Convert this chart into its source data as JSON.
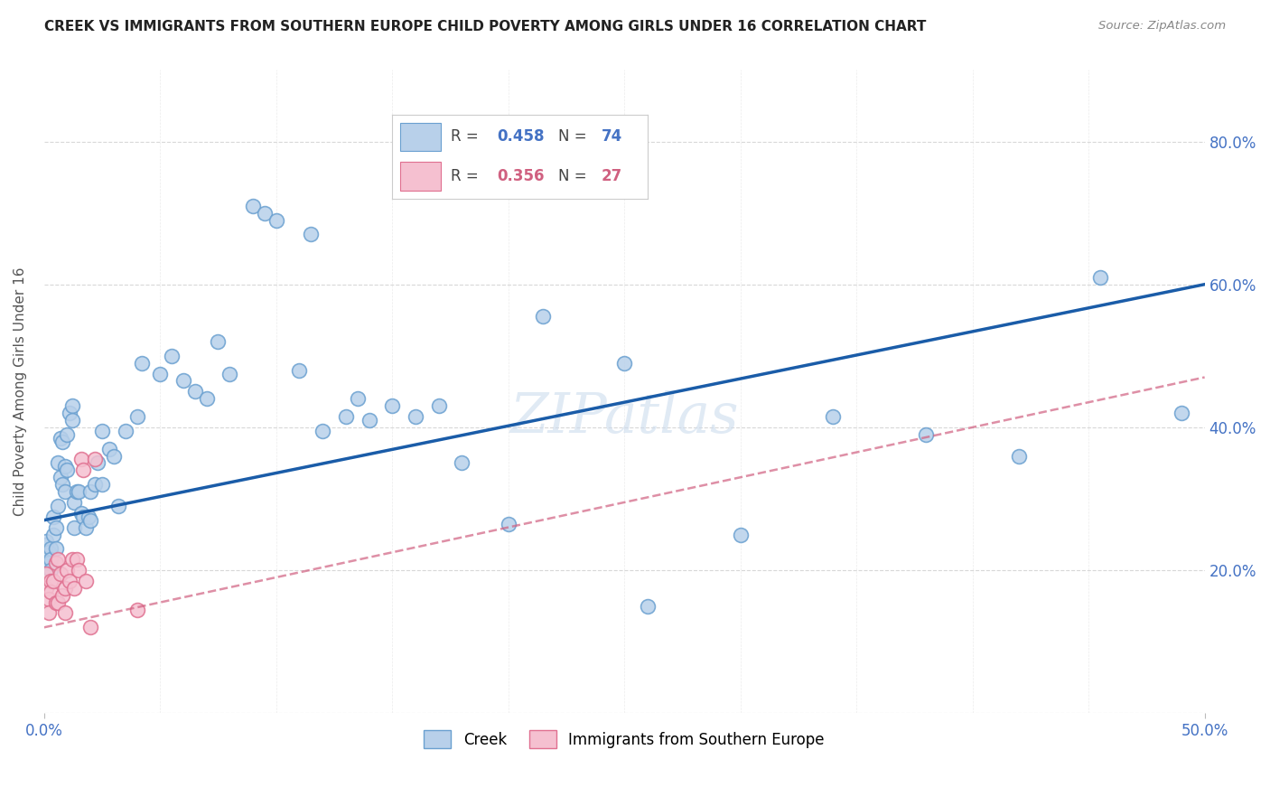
{
  "title": "CREEK VS IMMIGRANTS FROM SOUTHERN EUROPE CHILD POVERTY AMONG GIRLS UNDER 16 CORRELATION CHART",
  "source": "Source: ZipAtlas.com",
  "ylabel": "Child Poverty Among Girls Under 16",
  "xlim": [
    0.0,
    0.5
  ],
  "ylim": [
    0.0,
    0.9
  ],
  "yticks": [
    0.0,
    0.2,
    0.4,
    0.6,
    0.8
  ],
  "ytick_labels": [
    "",
    "20.0%",
    "40.0%",
    "60.0%",
    "80.0%"
  ],
  "background_color": "#ffffff",
  "grid_color": "#d8d8d8",
  "creek_fill_color": "#b8d0ea",
  "creek_edge_color": "#6aa0d0",
  "southern_fill_color": "#f5c0d0",
  "southern_edge_color": "#e07090",
  "creek_line_color": "#1a5ca8",
  "southern_line_color": "#d06080",
  "watermark_color": "#ccdcee",
  "creek_line_y0": 0.27,
  "creek_line_y1": 0.6,
  "southern_line_y0": 0.12,
  "southern_line_y1": 0.47,
  "creek_x": [
    0.001,
    0.001,
    0.002,
    0.002,
    0.003,
    0.003,
    0.003,
    0.004,
    0.004,
    0.005,
    0.005,
    0.006,
    0.006,
    0.007,
    0.007,
    0.008,
    0.008,
    0.009,
    0.009,
    0.01,
    0.01,
    0.011,
    0.012,
    0.012,
    0.013,
    0.013,
    0.014,
    0.015,
    0.016,
    0.017,
    0.018,
    0.019,
    0.02,
    0.02,
    0.022,
    0.023,
    0.025,
    0.025,
    0.028,
    0.03,
    0.032,
    0.035,
    0.04,
    0.042,
    0.05,
    0.055,
    0.06,
    0.065,
    0.07,
    0.075,
    0.08,
    0.09,
    0.095,
    0.1,
    0.11,
    0.115,
    0.12,
    0.13,
    0.135,
    0.14,
    0.15,
    0.16,
    0.17,
    0.18,
    0.2,
    0.215,
    0.25,
    0.26,
    0.3,
    0.34,
    0.38,
    0.42,
    0.455,
    0.49
  ],
  "creek_y": [
    0.235,
    0.24,
    0.225,
    0.21,
    0.23,
    0.215,
    0.2,
    0.275,
    0.25,
    0.26,
    0.23,
    0.35,
    0.29,
    0.385,
    0.33,
    0.38,
    0.32,
    0.345,
    0.31,
    0.39,
    0.34,
    0.42,
    0.43,
    0.41,
    0.295,
    0.26,
    0.31,
    0.31,
    0.28,
    0.275,
    0.26,
    0.275,
    0.27,
    0.31,
    0.32,
    0.35,
    0.395,
    0.32,
    0.37,
    0.36,
    0.29,
    0.395,
    0.415,
    0.49,
    0.475,
    0.5,
    0.465,
    0.45,
    0.44,
    0.52,
    0.475,
    0.71,
    0.7,
    0.69,
    0.48,
    0.67,
    0.395,
    0.415,
    0.44,
    0.41,
    0.43,
    0.415,
    0.43,
    0.35,
    0.265,
    0.555,
    0.49,
    0.15,
    0.25,
    0.415,
    0.39,
    0.36,
    0.61,
    0.42
  ],
  "southern_x": [
    0.001,
    0.001,
    0.002,
    0.002,
    0.003,
    0.003,
    0.004,
    0.005,
    0.005,
    0.006,
    0.006,
    0.007,
    0.008,
    0.009,
    0.009,
    0.01,
    0.011,
    0.012,
    0.013,
    0.014,
    0.015,
    0.016,
    0.017,
    0.018,
    0.02,
    0.022,
    0.04
  ],
  "southern_y": [
    0.175,
    0.195,
    0.16,
    0.14,
    0.185,
    0.17,
    0.185,
    0.21,
    0.155,
    0.215,
    0.155,
    0.195,
    0.165,
    0.175,
    0.14,
    0.2,
    0.185,
    0.215,
    0.175,
    0.215,
    0.2,
    0.355,
    0.34,
    0.185,
    0.12,
    0.355,
    0.145
  ]
}
